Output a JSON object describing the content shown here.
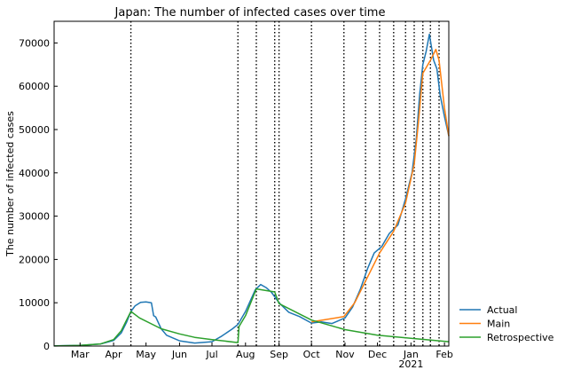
{
  "chart_data": {
    "type": "line",
    "title": "Japan: The number of infected cases over time",
    "xlabel": "",
    "ylabel": "The number of infected cases",
    "xlim": [
      "2020-02-06",
      "2021-02-05"
    ],
    "ylim": [
      0,
      75000
    ],
    "grid": false,
    "legend_position": "lower-right-outside",
    "x_ticks": [
      {
        "date": "2020-03-01",
        "label": "Mar",
        "sublabel": ""
      },
      {
        "date": "2020-04-01",
        "label": "Apr",
        "sublabel": ""
      },
      {
        "date": "2020-05-01",
        "label": "May",
        "sublabel": ""
      },
      {
        "date": "2020-06-01",
        "label": "Jun",
        "sublabel": ""
      },
      {
        "date": "2020-07-01",
        "label": "Jul",
        "sublabel": ""
      },
      {
        "date": "2020-08-01",
        "label": "Aug",
        "sublabel": ""
      },
      {
        "date": "2020-09-01",
        "label": "Sep",
        "sublabel": ""
      },
      {
        "date": "2020-10-01",
        "label": "Oct",
        "sublabel": ""
      },
      {
        "date": "2020-11-01",
        "label": "Nov",
        "sublabel": ""
      },
      {
        "date": "2020-12-01",
        "label": "Dec",
        "sublabel": ""
      },
      {
        "date": "2021-01-01",
        "label": "Jan",
        "sublabel": "2021"
      },
      {
        "date": "2021-02-01",
        "label": "Feb",
        "sublabel": ""
      }
    ],
    "y_ticks": [
      {
        "value": 0,
        "label": "0"
      },
      {
        "value": 10000,
        "label": "10000"
      },
      {
        "value": 20000,
        "label": "20000"
      },
      {
        "value": 30000,
        "label": "30000"
      },
      {
        "value": 40000,
        "label": "40000"
      },
      {
        "value": 50000,
        "label": "50000"
      },
      {
        "value": 60000,
        "label": "60000"
      },
      {
        "value": 70000,
        "label": "70000"
      }
    ],
    "change_dates": [
      "2020-04-17",
      "2020-07-25",
      "2020-08-11",
      "2020-08-28",
      "2020-09-01",
      "2020-10-01",
      "2020-10-31",
      "2020-11-20",
      "2020-12-03",
      "2020-12-16",
      "2020-12-27",
      "2021-01-04",
      "2021-01-12",
      "2021-01-19",
      "2021-01-27"
    ],
    "series": [
      {
        "name": "Actual",
        "color": "#1f77b4",
        "points": [
          [
            "2020-02-06",
            50
          ],
          [
            "2020-03-01",
            150
          ],
          [
            "2020-03-20",
            500
          ],
          [
            "2020-04-01",
            1300
          ],
          [
            "2020-04-08",
            3000
          ],
          [
            "2020-04-13",
            5500
          ],
          [
            "2020-04-17",
            8000
          ],
          [
            "2020-04-21",
            9300
          ],
          [
            "2020-04-26",
            10100
          ],
          [
            "2020-05-01",
            10200
          ],
          [
            "2020-05-06",
            10000
          ],
          [
            "2020-05-08",
            7000
          ],
          [
            "2020-05-10",
            6700
          ],
          [
            "2020-05-15",
            4000
          ],
          [
            "2020-05-20",
            2500
          ],
          [
            "2020-06-01",
            1200
          ],
          [
            "2020-06-15",
            700
          ],
          [
            "2020-07-01",
            1000
          ],
          [
            "2020-07-10",
            2300
          ],
          [
            "2020-07-20",
            4000
          ],
          [
            "2020-07-25",
            5000
          ],
          [
            "2020-08-01",
            8000
          ],
          [
            "2020-08-10",
            13000
          ],
          [
            "2020-08-15",
            14200
          ],
          [
            "2020-08-20",
            13500
          ],
          [
            "2020-08-25",
            12400
          ],
          [
            "2020-09-01",
            10000
          ],
          [
            "2020-09-10",
            7800
          ],
          [
            "2020-09-20",
            6800
          ],
          [
            "2020-10-01",
            5300
          ],
          [
            "2020-10-10",
            5600
          ],
          [
            "2020-10-20",
            5200
          ],
          [
            "2020-11-01",
            6500
          ],
          [
            "2020-11-08",
            9000
          ],
          [
            "2020-11-15",
            13000
          ],
          [
            "2020-11-22",
            18000
          ],
          [
            "2020-11-28",
            21500
          ],
          [
            "2020-12-05",
            23000
          ],
          [
            "2020-12-12",
            26000
          ],
          [
            "2020-12-20",
            28000
          ],
          [
            "2020-12-27",
            34000
          ],
          [
            "2021-01-02",
            40000
          ],
          [
            "2021-01-06",
            48000
          ],
          [
            "2021-01-09",
            58000
          ],
          [
            "2021-01-12",
            65000
          ],
          [
            "2021-01-15",
            68000
          ],
          [
            "2021-01-18",
            72000
          ],
          [
            "2021-01-22",
            66000
          ],
          [
            "2021-01-25",
            64000
          ],
          [
            "2021-01-28",
            58000
          ],
          [
            "2021-02-01",
            53000
          ],
          [
            "2021-02-05",
            48500
          ]
        ]
      },
      {
        "name": "Main",
        "color": "#ff7f0e",
        "points": [
          [
            "2020-10-01",
            5600
          ],
          [
            "2020-10-31",
            6800
          ],
          [
            "2020-11-10",
            10000
          ],
          [
            "2020-11-20",
            15000
          ],
          [
            "2020-12-03",
            21500
          ],
          [
            "2020-12-16",
            26500
          ],
          [
            "2020-12-27",
            33000
          ],
          [
            "2021-01-04",
            42000
          ],
          [
            "2021-01-08",
            52000
          ],
          [
            "2021-01-12",
            63000
          ],
          [
            "2021-01-19",
            66000
          ],
          [
            "2021-01-24",
            68500
          ],
          [
            "2021-01-27",
            66000
          ],
          [
            "2021-02-01",
            55000
          ],
          [
            "2021-02-05",
            48500
          ]
        ]
      },
      {
        "name": "Retrospective",
        "color": "#2ca02c",
        "points": [
          [
            "2020-02-06",
            30
          ],
          [
            "2020-03-01",
            150
          ],
          [
            "2020-03-20",
            500
          ],
          [
            "2020-04-01",
            1500
          ],
          [
            "2020-04-08",
            3500
          ],
          [
            "2020-04-13",
            6000
          ],
          [
            "2020-04-17",
            8000
          ],
          [
            "2020-04-25",
            6500
          ],
          [
            "2020-05-15",
            4000
          ],
          [
            "2020-06-01",
            2800
          ],
          [
            "2020-06-15",
            2000
          ],
          [
            "2020-07-01",
            1500
          ],
          [
            "2020-07-25",
            800
          ],
          [
            "2020-07-26",
            4500
          ],
          [
            "2020-08-01",
            7000
          ],
          [
            "2020-08-11",
            13200
          ],
          [
            "2020-08-28",
            12500
          ],
          [
            "2020-09-01",
            9800
          ],
          [
            "2020-10-01",
            6000
          ],
          [
            "2020-11-01",
            3800
          ],
          [
            "2020-12-01",
            2500
          ],
          [
            "2021-01-01",
            1800
          ],
          [
            "2021-02-05",
            1000
          ]
        ]
      }
    ]
  }
}
